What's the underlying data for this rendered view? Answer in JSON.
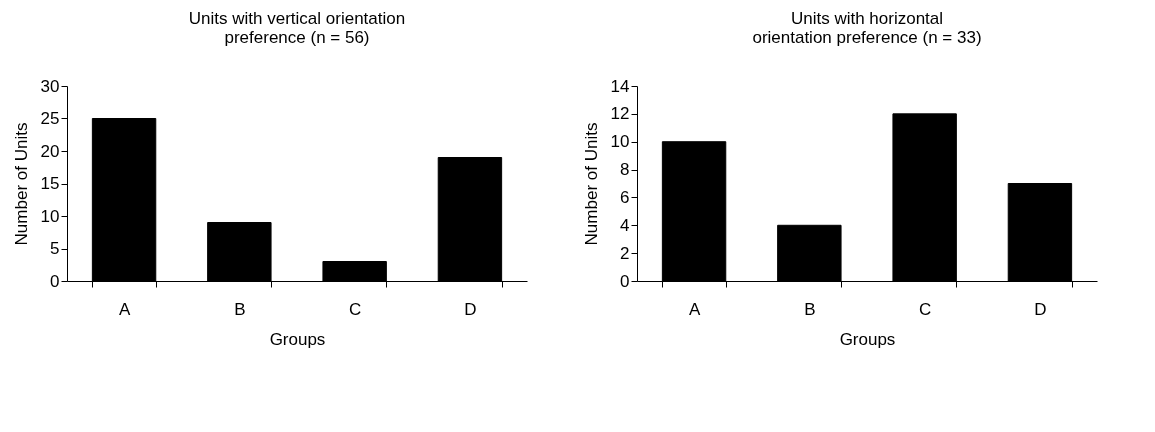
{
  "chart_data": [
    {
      "type": "bar",
      "title": "Units with vertical orientation preference (n = 56)",
      "xlabel": "Groups",
      "ylabel": "Number of Units",
      "categories": [
        "A",
        "B",
        "C",
        "D"
      ],
      "values": [
        25,
        9,
        3,
        19
      ],
      "color": "#000000",
      "ylim": [
        0,
        30
      ],
      "yticks": [
        0,
        5,
        10,
        15,
        20,
        25,
        30
      ]
    },
    {
      "type": "bar",
      "title": "Units with horizontal orientation preference (n = 33)",
      "xlabel": "Groups",
      "ylabel": "Number of Units",
      "categories": [
        "A",
        "B",
        "C",
        "D"
      ],
      "values": [
        10,
        4,
        12,
        7
      ],
      "color": "#000000",
      "ylim": [
        0,
        14
      ],
      "yticks": [
        0,
        2,
        4,
        6,
        8,
        10,
        12,
        14
      ]
    }
  ]
}
